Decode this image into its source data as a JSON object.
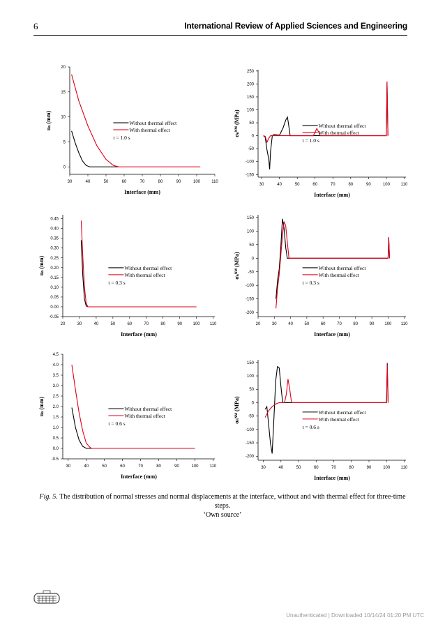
{
  "header": {
    "page_number": "6",
    "journal": "International Review of Applied Sciences and Engineering"
  },
  "caption": {
    "label": "Fig. 5.",
    "text": "The distribution of normal stresses and normal displacements at the interface, without and with thermal effect for three-time steps.",
    "source": "‘Own source’"
  },
  "footer": "Unauthenticated | Downloaded 10/14/24 01:20 PM UTC",
  "colors": {
    "without": "#000000",
    "with": "#e0001b"
  },
  "chart_data": [
    {
      "type": "line",
      "xlabel": "Interface (mm)",
      "ylabel": "uₙ (mm)",
      "xlim": [
        30,
        110
      ],
      "ylim": [
        -1.5,
        20
      ],
      "xticks": [
        "30",
        "40",
        "50",
        "60",
        "70",
        "80",
        "90",
        "100",
        "110"
      ],
      "yticks": [
        "0",
        "5",
        "10",
        "15",
        "20"
      ],
      "legend": [
        "Without thermal effect",
        "With thermal effect"
      ],
      "time_label": "t = 1.0 s",
      "series": [
        {
          "name": "Without thermal effect",
          "points": [
            [
              31,
              7.2
            ],
            [
              33,
              4.8
            ],
            [
              35,
              2.8
            ],
            [
              37,
              1.2
            ],
            [
              39,
              0.3
            ],
            [
              41,
              0
            ],
            [
              57,
              0
            ]
          ]
        },
        {
          "name": "With thermal effect",
          "points": [
            [
              31,
              18.5
            ],
            [
              35,
              13.2
            ],
            [
              40,
              8.2
            ],
            [
              45,
              4.2
            ],
            [
              50,
              1.5
            ],
            [
              54,
              0.3
            ],
            [
              57,
              0
            ],
            [
              102,
              0
            ]
          ]
        }
      ]
    },
    {
      "type": "line",
      "xlabel": "Interface (mm)",
      "ylabel": "σₙᴺᴹ (MPa)",
      "xlim": [
        28,
        111
      ],
      "ylim": [
        -160,
        255
      ],
      "xticks": [
        "30",
        "40",
        "50",
        "60",
        "70",
        "80",
        "90",
        "100",
        "110"
      ],
      "yticks": [
        "250",
        "200",
        "150",
        "100",
        "50",
        "0",
        "-50",
        "-100",
        "-150"
      ],
      "legend": [
        "Without thermal effect",
        "With thermal effect"
      ],
      "time_label": "t = 1.0 s",
      "series": [
        {
          "name": "Without thermal effect",
          "points": [
            [
              31,
              0
            ],
            [
              32,
              -5
            ],
            [
              33,
              -55
            ],
            [
              34,
              -90
            ],
            [
              34.5,
              -130
            ],
            [
              35,
              -60
            ],
            [
              36,
              0
            ],
            [
              37,
              5
            ],
            [
              40,
              2
            ],
            [
              42,
              30
            ],
            [
              43.5,
              60
            ],
            [
              44.5,
              72
            ],
            [
              45,
              50
            ],
            [
              46,
              0
            ],
            [
              100,
              0
            ],
            [
              100.4,
              205
            ],
            [
              100.9,
              0
            ]
          ]
        },
        {
          "name": "With thermal effect",
          "points": [
            [
              31,
              0
            ],
            [
              32,
              -2
            ],
            [
              33,
              -25
            ],
            [
              34,
              -10
            ],
            [
              35,
              0
            ],
            [
              59,
              0
            ],
            [
              61,
              28
            ],
            [
              63,
              0
            ],
            [
              100,
              0
            ],
            [
              100.4,
              210
            ],
            [
              100.9,
              0
            ]
          ]
        }
      ]
    },
    {
      "type": "line",
      "xlabel": "Interface (mm)",
      "ylabel": "uₙ (mm)",
      "xlim": [
        20,
        111
      ],
      "ylim": [
        -0.05,
        0.47
      ],
      "xticks": [
        "20",
        "30",
        "40",
        "50",
        "60",
        "70",
        "80",
        "90",
        "100",
        "110"
      ],
      "yticks": [
        "0.45",
        "0.40",
        "0.35",
        "0.30",
        "0.25",
        "0.20",
        "0.15",
        "0.10",
        "0.05",
        "0.00",
        "-0.05"
      ],
      "legend": [
        "Without thermal effect",
        "With thermal effect"
      ],
      "time_label": "t = 0.3 s",
      "series": [
        {
          "name": "Without thermal effect",
          "points": [
            [
              31,
              0.34
            ],
            [
              32,
              0.16
            ],
            [
              33,
              0.04
            ],
            [
              34,
              0.005
            ],
            [
              35,
              0
            ],
            [
              100,
              0
            ]
          ]
        },
        {
          "name": "With thermal effect",
          "points": [
            [
              31,
              0.44
            ],
            [
              32,
              0.26
            ],
            [
              33,
              0.1
            ],
            [
              34,
              0.02
            ],
            [
              35,
              0
            ],
            [
              100,
              0
            ]
          ]
        }
      ]
    },
    {
      "type": "line",
      "xlabel": "Interface (mm)",
      "ylabel": "σₙᴺᴹ (MPa)",
      "xlim": [
        20,
        111
      ],
      "ylim": [
        -215,
        160
      ],
      "xticks": [
        "20",
        "30",
        "40",
        "50",
        "60",
        "70",
        "80",
        "90",
        "100",
        "110"
      ],
      "yticks": [
        "150",
        "100",
        "50",
        "0",
        "-50",
        "-100",
        "-150",
        "-200"
      ],
      "legend": [
        "Without thermal effect",
        "With thermal effect"
      ],
      "time_label": "t = 0.3 s",
      "series": [
        {
          "name": "Without thermal effect",
          "points": [
            [
              31,
              -150
            ],
            [
              32,
              -80
            ],
            [
              33,
              -40
            ],
            [
              34,
              40
            ],
            [
              35,
              145
            ],
            [
              36,
              110
            ],
            [
              37,
              40
            ],
            [
              38,
              0
            ],
            [
              100,
              0
            ],
            [
              100.4,
              75
            ],
            [
              100.9,
              0
            ]
          ]
        },
        {
          "name": "With thermal effect",
          "points": [
            [
              31,
              -185
            ],
            [
              32,
              -110
            ],
            [
              33,
              -60
            ],
            [
              34,
              10
            ],
            [
              35,
              80
            ],
            [
              36,
              135
            ],
            [
              37,
              120
            ],
            [
              38,
              60
            ],
            [
              39,
              0
            ],
            [
              100,
              0
            ],
            [
              100.4,
              78
            ],
            [
              100.9,
              0
            ]
          ]
        }
      ]
    },
    {
      "type": "line",
      "xlabel": "Interface (mm)",
      "ylabel": "uₙ (mm)",
      "xlim": [
        27,
        111
      ],
      "ylim": [
        -0.5,
        4.5
      ],
      "xticks": [
        "30",
        "40",
        "50",
        "60",
        "70",
        "80",
        "90",
        "100",
        "110"
      ],
      "yticks": [
        "4.5",
        "4.0",
        "3.5",
        "3.0",
        "2.5",
        "2.0",
        "1.5",
        "1.0",
        "0.5",
        "0.0",
        "-0.5"
      ],
      "legend": [
        "Without thermal effect",
        "With thermal effect"
      ],
      "time_label": "t = 0.6 s",
      "series": [
        {
          "name": "Without thermal effect",
          "points": [
            [
              32,
              1.95
            ],
            [
              34,
              1.0
            ],
            [
              36,
              0.4
            ],
            [
              38,
              0.1
            ],
            [
              40,
              0
            ],
            [
              100,
              0
            ]
          ]
        },
        {
          "name": "With thermal effect",
          "points": [
            [
              32,
              4.0
            ],
            [
              34,
              2.8
            ],
            [
              36,
              1.7
            ],
            [
              38,
              0.85
            ],
            [
              40,
              0.25
            ],
            [
              42,
              0.05
            ],
            [
              43,
              0
            ],
            [
              100,
              0
            ]
          ]
        }
      ]
    },
    {
      "type": "line",
      "xlabel": "Interface (mm)",
      "ylabel": "σₙᴺᴹ (MPa)",
      "xlim": [
        27,
        111
      ],
      "ylim": [
        -215,
        160
      ],
      "xticks": [
        "30",
        "40",
        "50",
        "60",
        "70",
        "80",
        "90",
        "100",
        "110"
      ],
      "yticks": [
        "150",
        "100",
        "50",
        "0",
        "-50",
        "-100",
        "-150",
        "-200"
      ],
      "legend": [
        "Without thermal effect",
        "With thermal effect"
      ],
      "time_label": "t = 0.6 s",
      "series": [
        {
          "name": "Without thermal effect",
          "points": [
            [
              31,
              -25
            ],
            [
              32,
              -15
            ],
            [
              33,
              -80
            ],
            [
              34,
              -150
            ],
            [
              35,
              -190
            ],
            [
              36,
              -60
            ],
            [
              37,
              80
            ],
            [
              38,
              135
            ],
            [
              39,
              130
            ],
            [
              40,
              60
            ],
            [
              41,
              0
            ],
            [
              100,
              0
            ],
            [
              100.4,
              148
            ],
            [
              100.9,
              0
            ]
          ]
        },
        {
          "name": "With thermal effect",
          "points": [
            [
              31,
              -55
            ],
            [
              33,
              -30
            ],
            [
              35,
              -15
            ],
            [
              37,
              -5
            ],
            [
              39,
              0
            ],
            [
              42,
              0
            ],
            [
              43,
              30
            ],
            [
              44,
              88
            ],
            [
              45,
              50
            ],
            [
              46,
              0
            ],
            [
              100,
              0
            ],
            [
              100.4,
              140
            ],
            [
              100.9,
              0
            ]
          ]
        }
      ]
    }
  ]
}
